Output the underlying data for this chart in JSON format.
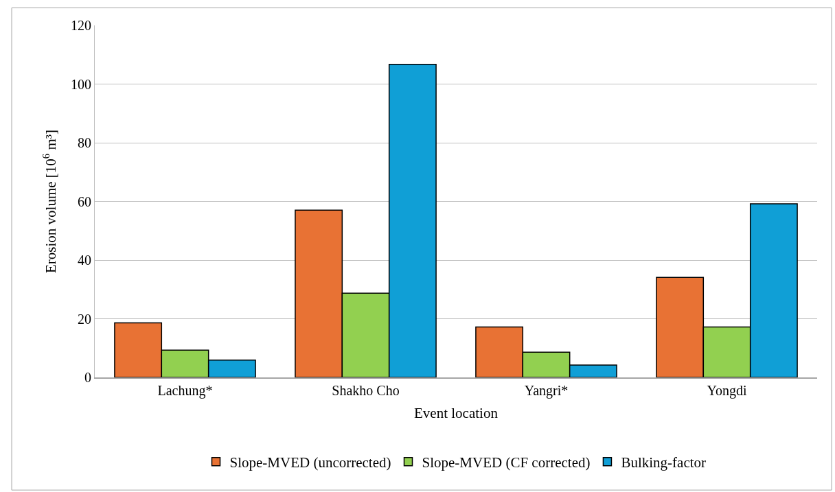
{
  "chart_data": {
    "type": "bar",
    "xlabel": "Event location",
    "ylabel": "Erosion volume [10$^{6}$ m³]",
    "categories": [
      "Lachung*",
      "Shakho Cho",
      "Yangri*",
      "Yongdi"
    ],
    "series": [
      {
        "name": "Slope-MVED (uncorrected)",
        "color": "#e87234",
        "values": [
          18.6,
          57.0,
          17.2,
          34.1
        ]
      },
      {
        "name": "Slope-MVED (CF corrected)",
        "color": "#92d050",
        "values": [
          9.3,
          28.7,
          8.6,
          17.2
        ]
      },
      {
        "name": "Bulking-factor",
        "color": "#109fd6",
        "values": [
          5.9,
          106.7,
          4.2,
          59.2
        ]
      }
    ],
    "ylim": [
      0,
      120
    ],
    "yticks": [
      0,
      20,
      40,
      60,
      80,
      100,
      120
    ],
    "grid": "y",
    "legend": "bottom"
  }
}
